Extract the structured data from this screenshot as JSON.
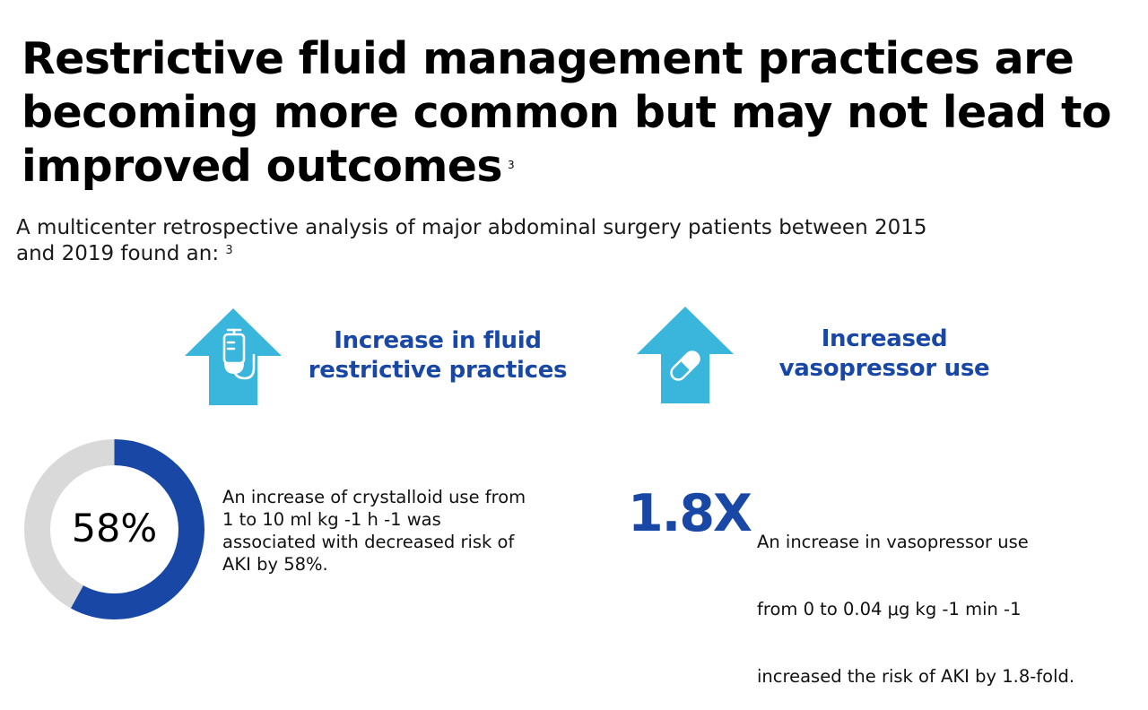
{
  "title": {
    "text": "Restrictive fluid management practices are becoming more common but may not lead to improved outcomes",
    "ref": "3"
  },
  "intro": {
    "line1": "A multicenter retrospective analysis of major abdominal surgery patients between 2015",
    "line2": "and 2019 found an:",
    "ref": "3"
  },
  "features": [
    {
      "icon": "iv-bag-arrow-up-icon",
      "line1": "Increase in fluid",
      "line2": "restrictive practices"
    },
    {
      "icon": "pill-capsule-arrow-up-icon",
      "line1": "Increased",
      "line2": "vasopressor use"
    }
  ],
  "stats": {
    "crystalloid": {
      "value_label": "58%",
      "percent": 58,
      "lines": [
        "An increase of crystalloid use from",
        "1 to 10 ml kg  -1 h -1 was",
        "associated with decreased risk of",
        "AKI by 58%."
      ]
    },
    "vasopressor": {
      "value_label": "1.8X",
      "lines": [
        "An increase in vasopressor use",
        "from 0 to 0.04  μg kg -1 min -1",
        " increased the risk of AKI by 1.8-fold."
      ]
    }
  },
  "colors": {
    "brand_blue": "#1847a6",
    "icon_teal": "#3ab6dc",
    "donut_track": "#d9d9d9",
    "donut_fill": "#1847a6"
  }
}
